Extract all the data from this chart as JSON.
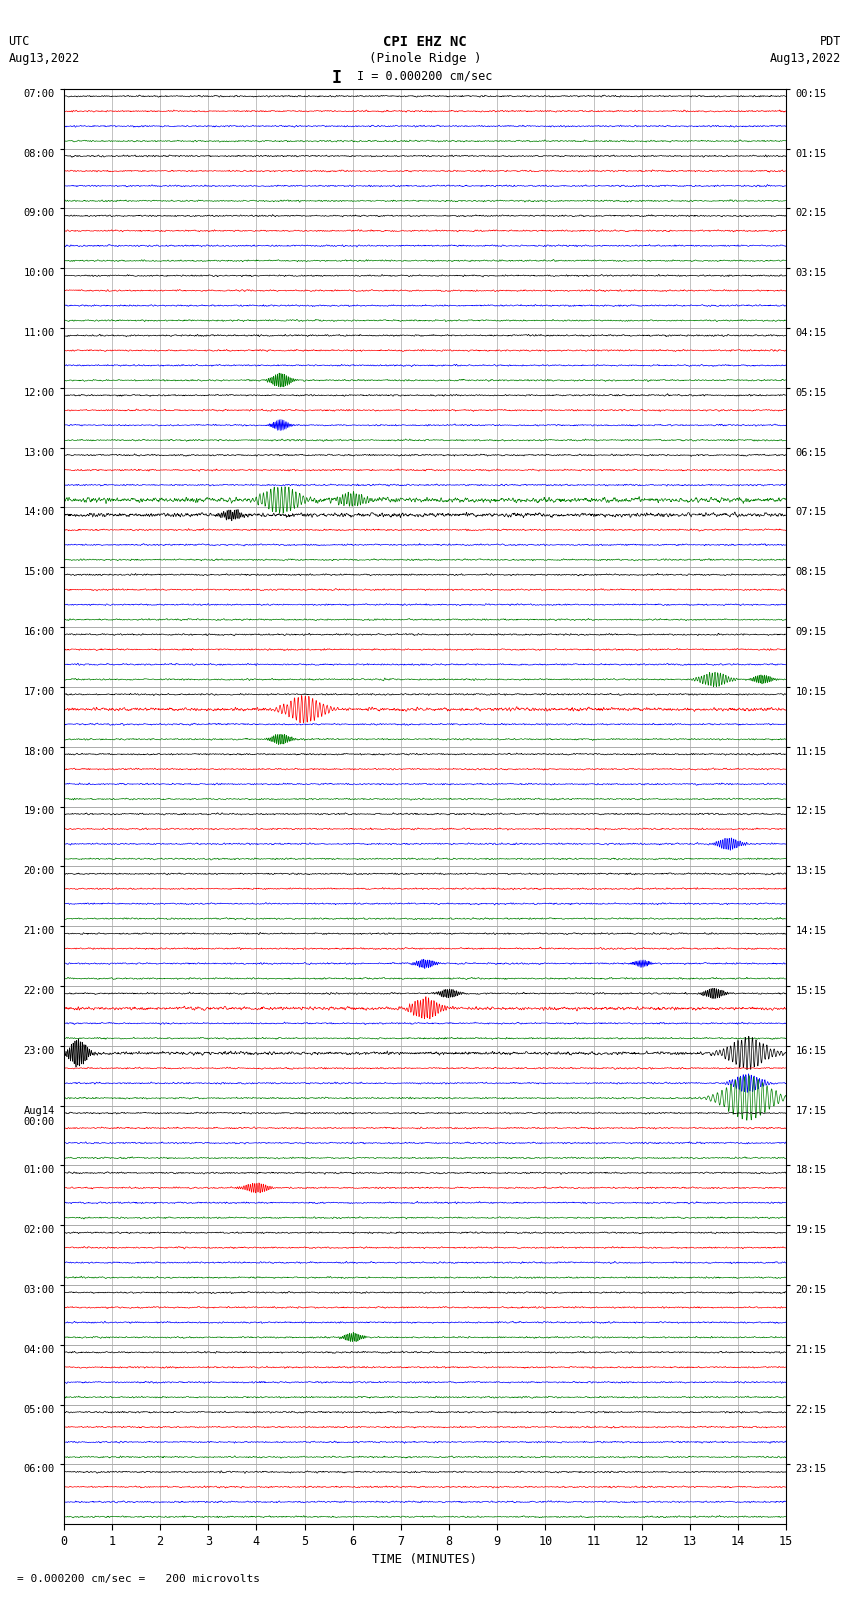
{
  "title_line1": "CPI EHZ NC",
  "title_line2": "(Pinole Ridge )",
  "scale_label": "I = 0.000200 cm/sec",
  "footer_label": "= 0.000200 cm/sec =   200 microvolts",
  "left_header": "UTC\nAug13,2022",
  "right_header": "PDT\nAug13,2022",
  "xlabel": "TIME (MINUTES)",
  "bg_color": "#ffffff",
  "trace_colors": [
    "black",
    "red",
    "blue",
    "green"
  ],
  "left_labels": [
    "07:00",
    "08:00",
    "09:00",
    "10:00",
    "11:00",
    "12:00",
    "13:00",
    "14:00",
    "15:00",
    "16:00",
    "17:00",
    "18:00",
    "19:00",
    "20:00",
    "21:00",
    "22:00",
    "23:00",
    "Aug14\n00:00",
    "01:00",
    "02:00",
    "03:00",
    "04:00",
    "05:00",
    "06:00"
  ],
  "right_labels": [
    "00:15",
    "01:15",
    "02:15",
    "03:15",
    "04:15",
    "05:15",
    "06:15",
    "07:15",
    "08:15",
    "09:15",
    "10:15",
    "11:15",
    "12:15",
    "13:15",
    "14:15",
    "15:15",
    "16:15",
    "17:15",
    "18:15",
    "19:15",
    "20:15",
    "21:15",
    "22:15",
    "23:15"
  ],
  "n_rows": 24,
  "traces_per_row": 4,
  "xmin": 0,
  "xmax": 15,
  "xticks": [
    0,
    1,
    2,
    3,
    4,
    5,
    6,
    7,
    8,
    9,
    10,
    11,
    12,
    13,
    14,
    15
  ],
  "noise_amp": 0.04,
  "figsize": [
    8.5,
    16.13
  ],
  "dpi": 100,
  "grid_color": "#888888",
  "vgrid_color": "#aaaaaa"
}
